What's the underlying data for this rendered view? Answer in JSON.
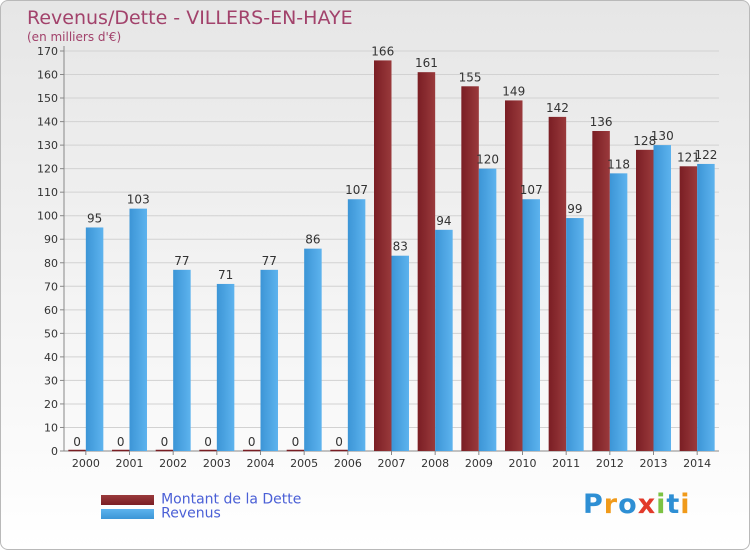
{
  "colors": {
    "debt": "#7a1e24",
    "debt_light": "#9a3a3c",
    "revenue": "#3c95d6",
    "revenue_light": "#5db3ee",
    "title": "#a2426b",
    "legend_text": "#4a5fd6",
    "logo": [
      "#2e8fd4",
      "#f09a1a",
      "#2e8fd4",
      "#e23a2a",
      "#7cc243",
      "#2e8fd4",
      "#f09a1a"
    ]
  },
  "logo": {
    "text": "Proxiti"
  },
  "chart_data": {
    "type": "bar",
    "title": "Revenus/Dette - VILLERS-EN-HAYE",
    "subtitle": "(en milliers d'€)",
    "categories": [
      "2000",
      "2001",
      "2002",
      "2003",
      "2004",
      "2005",
      "2006",
      "2007",
      "2008",
      "2009",
      "2010",
      "2011",
      "2012",
      "2013",
      "2014"
    ],
    "series": [
      {
        "name": "Montant de la Dette",
        "values": [
          0,
          0,
          0,
          0,
          0,
          0,
          0,
          166,
          161,
          155,
          149,
          142,
          136,
          128,
          121
        ]
      },
      {
        "name": "Revenus",
        "values": [
          95,
          103,
          77,
          71,
          77,
          86,
          107,
          83,
          94,
          120,
          107,
          99,
          118,
          130,
          122
        ]
      }
    ],
    "ylim": [
      0,
      170
    ],
    "yticks": [
      0,
      10,
      20,
      30,
      40,
      50,
      60,
      70,
      80,
      90,
      100,
      110,
      120,
      130,
      140,
      150,
      160,
      170
    ],
    "grid": true,
    "legend_position": "bottom-left"
  }
}
